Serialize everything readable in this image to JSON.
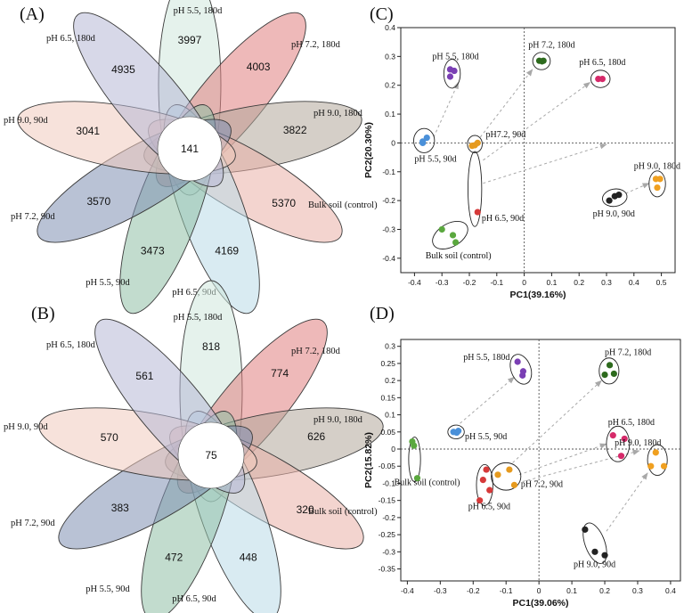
{
  "chart_data": {
    "panels": {
      "A": {
        "type": "venn-flower",
        "label": "(A)",
        "core_count": "141",
        "petals": [
          {
            "name": "pH 5.5, 180d",
            "count": "3997",
            "color": "#cfe8dc"
          },
          {
            "name": "pH 7.2, 180d",
            "count": "4003",
            "color": "#e07f7f"
          },
          {
            "name": "pH 9.0, 180d",
            "count": "3822",
            "color": "#b3a89b"
          },
          {
            "name": "Bulk soil (control)",
            "count": "5370",
            "color": "#eab0a8"
          },
          {
            "name": "pH 6.5, 90d",
            "count": "4169",
            "color": "#b9dbe8"
          },
          {
            "name": "pH 5.5, 90d",
            "count": "3473",
            "color": "#8fbfa6"
          },
          {
            "name": "pH 7.2, 90d",
            "count": "3570",
            "color": "#7f8fb2"
          },
          {
            "name": "pH 9.0, 90d",
            "count": "3041",
            "color": "#f1cbbd"
          },
          {
            "name": "pH 6.5, 180d",
            "count": "4935",
            "color": "#b7b8d6"
          }
        ]
      },
      "B": {
        "type": "venn-flower",
        "label": "(B)",
        "core_count": "75",
        "petals": [
          {
            "name": "pH 5.5, 180d",
            "count": "818",
            "color": "#cfe8dc"
          },
          {
            "name": "pH 7.2, 180d",
            "count": "774",
            "color": "#e07f7f"
          },
          {
            "name": "pH 9.0, 180d",
            "count": "626",
            "color": "#b3a89b"
          },
          {
            "name": "Bulk soil (control)",
            "count": "320",
            "color": "#eab0a8"
          },
          {
            "name": "pH 6.5, 90d",
            "count": "448",
            "color": "#b9dbe8"
          },
          {
            "name": "pH 5.5, 90d",
            "count": "472",
            "color": "#8fbfa6"
          },
          {
            "name": "pH 7.2, 90d",
            "count": "383",
            "color": "#7f8fb2"
          },
          {
            "name": "pH 9.0, 90d",
            "count": "570",
            "color": "#f1cbbd"
          },
          {
            "name": "pH 6.5, 180d",
            "count": "561",
            "color": "#b7b8d6"
          }
        ]
      },
      "C": {
        "type": "scatter",
        "label": "(C)",
        "xlabel": "PC1(39.16%)",
        "ylabel": "PC2(20.30%)",
        "xlim": [
          -0.45,
          0.55
        ],
        "ylim": [
          -0.45,
          0.4
        ],
        "xticks": [
          -0.4,
          -0.3,
          -0.2,
          -0.1,
          0,
          0.1,
          0.2,
          0.3,
          0.4,
          0.5
        ],
        "xtick_labels": [
          "-0.4",
          "-0.3",
          "-0.2",
          "-0.1",
          "0",
          "0.1",
          "0.2",
          "0.3",
          "0.4",
          "0.5"
        ],
        "yticks": [
          -0.4,
          -0.3,
          -0.2,
          -0.1,
          0,
          0.1,
          0.2,
          0.3,
          0.4
        ],
        "ytick_labels": [
          "-0.4",
          "-0.3",
          "-0.2",
          "-0.1",
          "0",
          "0.1",
          "0.2",
          "0.3",
          "0.4"
        ],
        "groups": [
          {
            "name": "pH 5.5, 90d",
            "color": "#4a90d9",
            "points": [
              [
                -0.37,
                0.0
              ],
              [
                -0.355,
                0.018
              ],
              [
                -0.37,
                0.005
              ]
            ]
          },
          {
            "name": "pH 5.5, 180d",
            "color": "#7a3fb4",
            "points": [
              [
                -0.27,
                0.255
              ],
              [
                -0.255,
                0.25
              ],
              [
                -0.27,
                0.23
              ]
            ]
          },
          {
            "name": "pH7.2, 90d",
            "color": "#e69a1e",
            "points": [
              [
                -0.19,
                -0.01
              ],
              [
                -0.17,
                0.0
              ],
              [
                -0.18,
                -0.008
              ]
            ]
          },
          {
            "name": "pH 7.2, 180d",
            "color": "#2d6a1d",
            "points": [
              [
                0.055,
                0.285
              ],
              [
                0.07,
                0.285
              ],
              [
                0.065,
                0.283
              ]
            ]
          },
          {
            "name": "pH 6.5, 90d",
            "color": "#d63a3a",
            "points": [
              [
                -0.17,
                -0.24
              ]
            ]
          },
          {
            "name": "pH 6.5, 180d",
            "color": "#d62a6a",
            "points": [
              [
                0.27,
                0.222
              ],
              [
                0.285,
                0.222
              ]
            ]
          },
          {
            "name": "pH 9.0, 90d",
            "color": "#222222",
            "points": [
              [
                0.31,
                -0.2
              ],
              [
                0.33,
                -0.185
              ],
              [
                0.345,
                -0.18
              ]
            ]
          },
          {
            "name": "pH 9.0, 180d",
            "color": "#f0a020",
            "points": [
              [
                0.48,
                -0.125
              ],
              [
                0.495,
                -0.125
              ],
              [
                0.485,
                -0.155
              ]
            ]
          },
          {
            "name": "Bulk soil (control)",
            "color": "#5aa83e",
            "points": [
              [
                -0.3,
                -0.3
              ],
              [
                -0.26,
                -0.32
              ],
              [
                -0.25,
                -0.345
              ]
            ]
          }
        ],
        "annotations": [
          {
            "text": "pH 5.5, 180d",
            "x": -0.335,
            "y": 0.29
          },
          {
            "text": "pH 7.2, 180d",
            "x": 0.015,
            "y": 0.33
          },
          {
            "text": "pH 6.5, 180d",
            "x": 0.2,
            "y": 0.27
          },
          {
            "text": "pH7.2, 90d",
            "x": -0.14,
            "y": 0.02
          },
          {
            "text": "pH 5.5, 90d",
            "x": -0.4,
            "y": -0.065
          },
          {
            "text": "pH 9.0, 180d",
            "x": 0.4,
            "y": -0.09
          },
          {
            "text": "pH 9.0, 90d",
            "x": 0.25,
            "y": -0.255
          },
          {
            "text": "pH 6.5, 90d",
            "x": -0.155,
            "y": -0.27
          },
          {
            "text": "Bulk soil (control)",
            "x": -0.36,
            "y": -0.4
          }
        ],
        "arrows": [
          [
            [
              -0.33,
              0.02
            ],
            [
              -0.24,
              0.21
            ]
          ],
          [
            [
              -0.16,
              0.02
            ],
            [
              0.03,
              0.255
            ]
          ],
          [
            [
              -0.15,
              -0.06
            ],
            [
              0.24,
              0.21
            ]
          ],
          [
            [
              -0.15,
              -0.14
            ],
            [
              0.3,
              -0.005
            ]
          ],
          [
            [
              0.37,
              -0.175
            ],
            [
              0.455,
              -0.14
            ]
          ]
        ],
        "group_ellipses": [
          {
            "cx": -0.365,
            "cy": 0.008,
            "rx": 0.038,
            "ry": 0.042,
            "rot": 0
          },
          {
            "cx": -0.263,
            "cy": 0.24,
            "rx": 0.03,
            "ry": 0.05,
            "rot": 0
          },
          {
            "cx": -0.18,
            "cy": -0.004,
            "rx": 0.027,
            "ry": 0.03,
            "rot": 0
          },
          {
            "cx": 0.063,
            "cy": 0.284,
            "rx": 0.032,
            "ry": 0.03,
            "rot": 0
          },
          {
            "cx": -0.18,
            "cy": -0.16,
            "rx": 0.025,
            "ry": 0.13,
            "rot": 0
          },
          {
            "cx": 0.278,
            "cy": 0.222,
            "rx": 0.035,
            "ry": 0.03,
            "rot": 0
          },
          {
            "cx": 0.33,
            "cy": -0.19,
            "rx": 0.045,
            "ry": 0.03,
            "rot": -10
          },
          {
            "cx": 0.485,
            "cy": -0.142,
            "rx": 0.03,
            "ry": 0.045,
            "rot": 0
          },
          {
            "cx": -0.27,
            "cy": -0.32,
            "rx": 0.07,
            "ry": 0.04,
            "rot": -30
          }
        ]
      },
      "D": {
        "type": "scatter",
        "label": "(D)",
        "xlabel": "PC1(39.06%)",
        "ylabel": "PC2(15.82%)",
        "xlim": [
          -0.42,
          0.43
        ],
        "ylim": [
          -0.385,
          0.32
        ],
        "xticks": [
          -0.4,
          -0.3,
          -0.2,
          -0.1,
          0,
          0.1,
          0.2,
          0.3,
          0.4
        ],
        "xtick_labels": [
          "-0.4",
          "-0.3",
          "-0.2",
          "-0.1",
          "0",
          "0.1",
          "0.2",
          "0.3",
          "0.4"
        ],
        "yticks": [
          -0.35,
          -0.3,
          -0.25,
          -0.2,
          -0.15,
          -0.1,
          -0.05,
          0,
          0.05,
          0.1,
          0.15,
          0.2,
          0.25,
          0.3
        ],
        "ytick_labels": [
          "-0.35",
          "-0.3",
          "-0.25",
          "-0.2",
          "-0.15",
          "-0.1",
          "-0.05",
          "0",
          "0.05",
          "0.1",
          "0.15",
          "0.2",
          "0.25",
          "0.3"
        ],
        "groups": [
          {
            "name": "pH 5.5, 180d",
            "color": "#7a3fb4",
            "points": [
              [
                -0.065,
                0.255
              ],
              [
                -0.048,
                0.227
              ],
              [
                -0.05,
                0.215
              ]
            ]
          },
          {
            "name": "pH 5.5, 90d",
            "color": "#4a90d9",
            "points": [
              [
                -0.26,
                0.05
              ],
              [
                -0.245,
                0.053
              ],
              [
                -0.25,
                0.048
              ]
            ]
          },
          {
            "name": "pH 7.2, 180d",
            "color": "#2d6a1d",
            "points": [
              [
                0.215,
                0.245
              ],
              [
                0.2,
                0.217
              ],
              [
                0.228,
                0.22
              ]
            ]
          },
          {
            "name": "pH 6.5, 180d",
            "color": "#d62a6a",
            "points": [
              [
                0.225,
                0.04
              ],
              [
                0.26,
                0.03
              ],
              [
                0.25,
                -0.02
              ]
            ]
          },
          {
            "name": "pH 9.0, 180d",
            "color": "#f0a020",
            "points": [
              [
                0.355,
                -0.01
              ],
              [
                0.38,
                -0.05
              ],
              [
                0.34,
                -0.05
              ]
            ]
          },
          {
            "name": "pH 7.2, 90d",
            "color": "#e69a1e",
            "points": [
              [
                -0.09,
                -0.06
              ],
              [
                -0.125,
                -0.075
              ],
              [
                -0.075,
                -0.105
              ]
            ]
          },
          {
            "name": "pH 6.5, 90d",
            "color": "#d63a3a",
            "points": [
              [
                -0.16,
                -0.06
              ],
              [
                -0.17,
                -0.09
              ],
              [
                -0.18,
                -0.15
              ],
              [
                -0.15,
                -0.12
              ]
            ]
          },
          {
            "name": "Bulk soil (control)",
            "color": "#5aa83e",
            "points": [
              [
                -0.385,
                0.022
              ],
              [
                -0.38,
                0.01
              ],
              [
                -0.37,
                -0.085
              ]
            ]
          },
          {
            "name": "pH 9.0, 90d",
            "color": "#222222",
            "points": [
              [
                0.14,
                -0.235
              ],
              [
                0.17,
                -0.3
              ],
              [
                0.2,
                -0.31
              ]
            ]
          }
        ],
        "annotations": [
          {
            "text": "pH 5.5, 180d",
            "x": -0.23,
            "y": 0.26
          },
          {
            "text": "pH 7.2, 180d",
            "x": 0.2,
            "y": 0.275
          },
          {
            "text": "pH 5.5, 90d",
            "x": -0.225,
            "y": 0.028
          },
          {
            "text": "pH 6.5, 180d",
            "x": 0.21,
            "y": 0.07
          },
          {
            "text": "pH 9.0, 180d",
            "x": 0.23,
            "y": 0.01
          },
          {
            "text": "pH 7.2, 90d",
            "x": -0.055,
            "y": -0.11
          },
          {
            "text": "Bulk soil (control)",
            "x": -0.44,
            "y": -0.105
          },
          {
            "text": "pH 6.5, 90d",
            "x": -0.215,
            "y": -0.175
          },
          {
            "text": "pH 9.0, 90d",
            "x": 0.105,
            "y": -0.345
          }
        ],
        "arrows": [
          [
            [
              -0.24,
              0.075
            ],
            [
              -0.075,
              0.21
            ]
          ],
          [
            [
              -0.08,
              -0.04
            ],
            [
              0.19,
              0.2
            ]
          ],
          [
            [
              -0.06,
              -0.075
            ],
            [
              0.205,
              0.015
            ]
          ],
          [
            [
              -0.05,
              -0.095
            ],
            [
              0.305,
              -0.005
            ]
          ],
          [
            [
              0.205,
              -0.24
            ],
            [
              0.33,
              -0.07
            ]
          ]
        ],
        "group_ellipses": [
          {
            "cx": -0.055,
            "cy": 0.233,
            "rx": 0.03,
            "ry": 0.045,
            "rot": -20
          },
          {
            "cx": -0.252,
            "cy": 0.05,
            "rx": 0.025,
            "ry": 0.02,
            "rot": 0
          },
          {
            "cx": 0.213,
            "cy": 0.228,
            "rx": 0.03,
            "ry": 0.038,
            "rot": 0
          },
          {
            "cx": 0.24,
            "cy": 0.015,
            "rx": 0.035,
            "ry": 0.052,
            "rot": 0
          },
          {
            "cx": 0.36,
            "cy": -0.032,
            "rx": 0.03,
            "ry": 0.045,
            "rot": 0
          },
          {
            "cx": -0.1,
            "cy": -0.08,
            "rx": 0.045,
            "ry": 0.04,
            "rot": 0
          },
          {
            "cx": -0.165,
            "cy": -0.105,
            "rx": 0.025,
            "ry": 0.06,
            "rot": 0
          },
          {
            "cx": -0.378,
            "cy": -0.03,
            "rx": 0.018,
            "ry": 0.065,
            "rot": 0
          },
          {
            "cx": 0.17,
            "cy": -0.275,
            "rx": 0.03,
            "ry": 0.062,
            "rot": -20
          }
        ]
      }
    }
  }
}
